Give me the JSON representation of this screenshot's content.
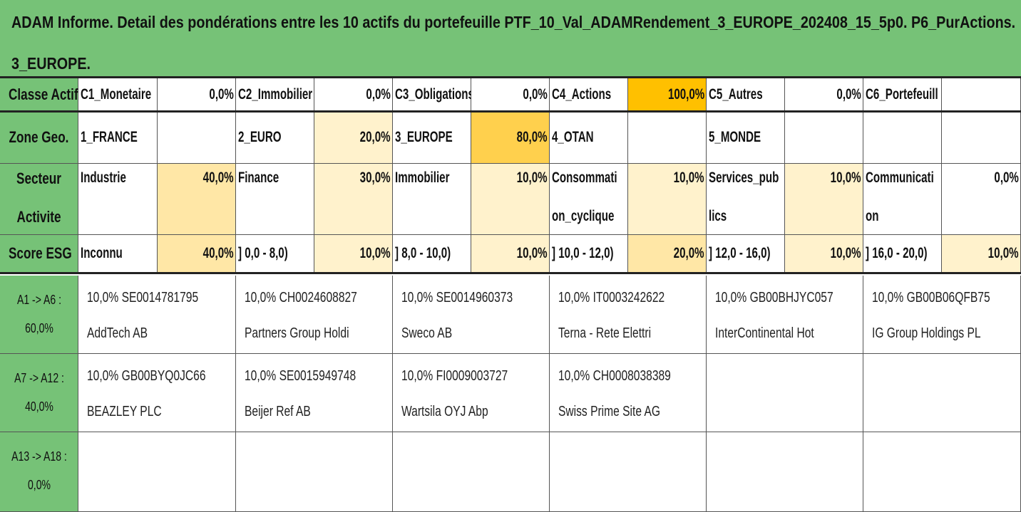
{
  "title": {
    "line1": "ADAM Informe. Detail des pondérations entre les 10 actifs du portefeuille PTF_10_Val_ADAMRendement_3_EUROPE_202408_15_5p0. P6_PurActions.",
    "line2": "3_EUROPE."
  },
  "colors": {
    "header_green": "#76c277",
    "orange_strong": "#ffc000",
    "orange_mid": "#ffd04d",
    "yellow_light": "#ffe7a6",
    "yellow_pale": "#fff2cc"
  },
  "rows": [
    {
      "label": "Classe Actif",
      "cells": [
        {
          "name": "C1_Monetaire",
          "value": "0,0%",
          "shade": "none"
        },
        {
          "name": "C2_Immobilier",
          "value": "0,0%",
          "shade": "none"
        },
        {
          "name": "C3_Obligations",
          "value": "0,0%",
          "shade": "none"
        },
        {
          "name": "C4_Actions",
          "value": "100,0%",
          "shade": "orange_strong"
        },
        {
          "name": "C5_Autres",
          "value": "0,0%",
          "shade": "none"
        },
        {
          "name": "C6_Portefeuill",
          "value": "",
          "shade": "none"
        }
      ]
    },
    {
      "label": "Zone Geo.",
      "cells": [
        {
          "name": "1_FRANCE",
          "value": "",
          "shade": "none"
        },
        {
          "name": "2_EURO",
          "value": "20,0%",
          "shade": "yellow_pale"
        },
        {
          "name": "3_EUROPE",
          "value": "80,0%",
          "shade": "orange_mid"
        },
        {
          "name": "4_OTAN",
          "value": "",
          "shade": "none"
        },
        {
          "name": "5_MONDE",
          "value": "",
          "shade": "none"
        },
        {
          "name": "",
          "value": "",
          "shade": "none"
        }
      ]
    },
    {
      "label_line1": "Secteur",
      "label_line2": "Activite",
      "cells": [
        {
          "name_line1": "Industrie",
          "name_line2": "",
          "value": "40,0%",
          "shade": "yellow_light"
        },
        {
          "name_line1": "Finance",
          "name_line2": "",
          "value": "30,0%",
          "shade": "yellow_pale"
        },
        {
          "name_line1": "Immobilier",
          "name_line2": "",
          "value": "10,0%",
          "shade": "yellow_pale"
        },
        {
          "name_line1": "Consommati",
          "name_line2": "on_cyclique",
          "value": "10,0%",
          "shade": "yellow_pale"
        },
        {
          "name_line1": "Services_pub",
          "name_line2": "lics",
          "value": "10,0%",
          "shade": "yellow_pale"
        },
        {
          "name_line1": "Communicati",
          "name_line2": "on",
          "value": "0,0%",
          "shade": "none"
        }
      ]
    },
    {
      "label": "Score ESG",
      "cells": [
        {
          "name": "Inconnu",
          "value": "40,0%",
          "shade": "yellow_light"
        },
        {
          "name": "] 0,0 - 8,0)",
          "value": "10,0%",
          "shade": "yellow_pale"
        },
        {
          "name": "] 8,0 - 10,0)",
          "value": "10,0%",
          "shade": "yellow_pale"
        },
        {
          "name": "] 10,0 - 12,0)",
          "value": "20,0%",
          "shade": "yellow_light"
        },
        {
          "name": "] 12,0 - 16,0)",
          "value": "10,0%",
          "shade": "yellow_pale"
        },
        {
          "name": "] 16,0 - 20,0)",
          "value": "10,0%",
          "shade": "yellow_pale"
        }
      ]
    }
  ],
  "asset_groups": [
    {
      "range": "A1 -> A6 :",
      "total": "60,0%",
      "assets": [
        {
          "line1": "10,0% SE0014781795",
          "line2": "AddTech AB"
        },
        {
          "line1": "10,0% CH0024608827",
          "line2": "Partners Group Holdi"
        },
        {
          "line1": "10,0% SE0014960373",
          "line2": "Sweco AB"
        },
        {
          "line1": "10,0% IT0003242622",
          "line2": "Terna - Rete Elettri"
        },
        {
          "line1": "10,0% GB00BHJYC057",
          "line2": "InterContinental Hot"
        },
        {
          "line1": "10,0% GB00B06QFB75",
          "line2": "IG Group Holdings PL"
        }
      ]
    },
    {
      "range": "A7 -> A12 :",
      "total": "40,0%",
      "assets": [
        {
          "line1": "10,0% GB00BYQ0JC66",
          "line2": "BEAZLEY PLC"
        },
        {
          "line1": "10,0% SE0015949748",
          "line2": "Beijer Ref AB"
        },
        {
          "line1": "10,0% FI0009003727",
          "line2": "Wartsila OYJ Abp"
        },
        {
          "line1": "10,0% CH0008038389",
          "line2": "Swiss Prime Site AG"
        },
        {
          "line1": "",
          "line2": ""
        },
        {
          "line1": "",
          "line2": ""
        }
      ]
    },
    {
      "range": "A13 -> A18 :",
      "total": "0,0%",
      "assets": [
        {
          "line1": "",
          "line2": ""
        },
        {
          "line1": "",
          "line2": ""
        },
        {
          "line1": "",
          "line2": ""
        },
        {
          "line1": "",
          "line2": ""
        },
        {
          "line1": "",
          "line2": ""
        },
        {
          "line1": "",
          "line2": ""
        }
      ]
    }
  ]
}
